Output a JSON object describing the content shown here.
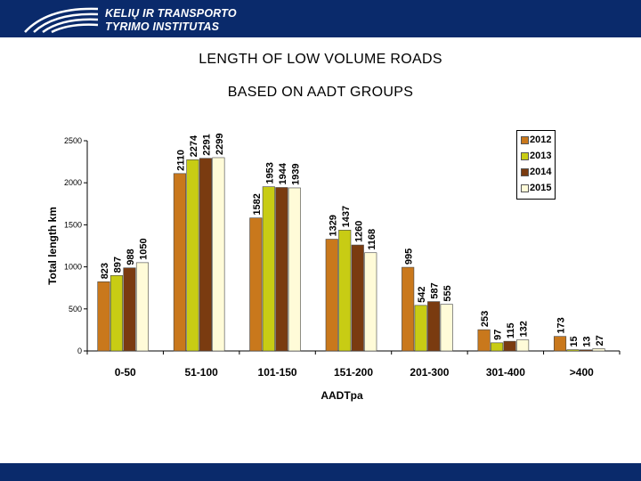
{
  "header": {
    "brand_line1": "KELIŲ IR TRANSPORTO",
    "brand_line2": "TYRIMO INSTITUTAS"
  },
  "slide": {
    "title_line1": "LENGTH OF LOW VOLUME ROADS",
    "title_line2": "BASED ON AADT GROUPS"
  },
  "chart_data": {
    "type": "bar",
    "xlabel": "AADTpa",
    "ylabel": "Total length km",
    "ylim": [
      0,
      2500
    ],
    "yticks": [
      0,
      500,
      1000,
      1500,
      2000,
      2500
    ],
    "categories": [
      "0-50",
      "51-100",
      "101-150",
      "151-200",
      "201-300",
      "301-400",
      ">400"
    ],
    "series": [
      {
        "name": "2012",
        "color": "#c9781c",
        "values": [
          823,
          2110,
          1582,
          1329,
          995,
          253,
          173
        ]
      },
      {
        "name": "2013",
        "color": "#c8cc14",
        "values": [
          897,
          2274,
          1953,
          1437,
          542,
          97,
          15
        ]
      },
      {
        "name": "2014",
        "color": "#7a3b10",
        "values": [
          988,
          2291,
          1944,
          1260,
          587,
          115,
          13
        ]
      },
      {
        "name": "2015",
        "color": "#fffbd8",
        "values": [
          1050,
          2299,
          1939,
          1168,
          555,
          132,
          27
        ]
      }
    ],
    "legend_position": "top-right",
    "grid": false
  }
}
